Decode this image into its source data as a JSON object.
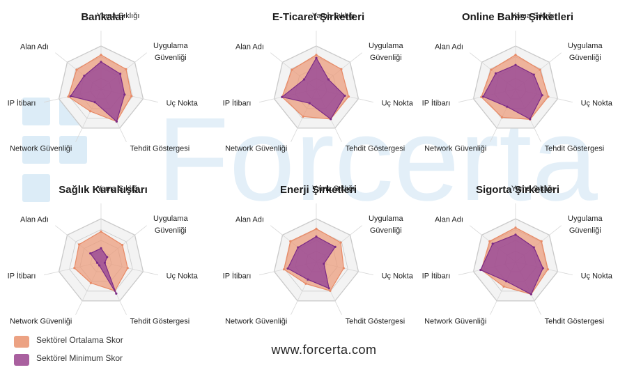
{
  "watermark": {
    "text": "Forcerta",
    "color": "#d9ebf7"
  },
  "axis_labels": [
    "Yama Sıklığı",
    "Uygulama\nGüvenliği",
    "Uç Nokta",
    "Tehdit Göstergesi",
    "Network Güvenliği",
    "IP İtibarı",
    "Alan Adı"
  ],
  "colors": {
    "average_fill": "#ec9a78",
    "average_stroke": "#e88a66",
    "minimum_fill": "#8e3a96",
    "minimum_stroke": "#7b2b86",
    "grid_fill": "#f3f3f3",
    "grid_stroke": "#c9c9c9",
    "grid_line": "#d8d8d8"
  },
  "legend": {
    "average_label": "Sektörel Ortalama Skor",
    "minimum_label": "Sektörel Minimum Skor"
  },
  "footer": {
    "website": "www.forcerta.com"
  },
  "chart_data": [
    {
      "type": "radar",
      "title": "Bankalar",
      "axes": [
        "Yama Sıklığı",
        "Uygulama Güvenliği",
        "Uç Nokta",
        "Tehdit Göstergesi",
        "Network Güvenliği",
        "IP İtibarı",
        "Alan Adı"
      ],
      "series": [
        {
          "name": "Sektörel Ortalama Skor",
          "values": [
            0.88,
            0.82,
            0.8,
            0.92,
            0.63,
            0.86,
            0.8
          ]
        },
        {
          "name": "Sektörel Minimum Skor",
          "values": [
            0.7,
            0.63,
            0.62,
            0.92,
            0.37,
            0.8,
            0.55
          ]
        }
      ]
    },
    {
      "type": "radar",
      "title": "E-Ticaret Şirketleri",
      "axes": [
        "Yama Sıklığı",
        "Uygulama Güvenliği",
        "Uç Nokta",
        "Tehdit Göstergesi",
        "Network Güvenliği",
        "IP İtibarı",
        "Alan Adı"
      ],
      "series": [
        {
          "name": "Sektörel Ortalama Skor",
          "values": [
            0.88,
            0.82,
            0.85,
            0.85,
            0.78,
            0.9,
            0.8
          ]
        },
        {
          "name": "Sektörel Minimum Skor",
          "values": [
            0.8,
            0.4,
            0.75,
            0.85,
            0.4,
            0.9,
            0.4
          ]
        }
      ]
    },
    {
      "type": "radar",
      "title": "Online Bahis Şirketleri",
      "axes": [
        "Yama Sıklığı",
        "Uygulama Güvenliği",
        "Uç Nokta",
        "Tehdit Göstergesi",
        "Network Güvenliği",
        "IP İtibarı",
        "Alan Adı"
      ],
      "series": [
        {
          "name": "Sektörel Ortalama Skor",
          "values": [
            0.88,
            0.8,
            0.86,
            0.86,
            0.8,
            0.9,
            0.8
          ]
        },
        {
          "name": "Sektörel Minimum Skor",
          "values": [
            0.62,
            0.6,
            0.7,
            0.85,
            0.5,
            0.85,
            0.65
          ]
        }
      ]
    },
    {
      "type": "radar",
      "title": "Sağlık Kuruluşları",
      "axes": [
        "Yama Sıklığı",
        "Uygulama Güvenliği",
        "Uç Nokta",
        "Tehdit Göstergesi",
        "Network Güvenliği",
        "IP İtibarı",
        "Alan Adı"
      ],
      "series": [
        {
          "name": "Sektörel Ortalama Skor",
          "values": [
            0.78,
            0.7,
            0.7,
            0.82,
            0.6,
            0.7,
            0.72
          ]
        },
        {
          "name": "Sektörel Minimum Skor",
          "values": [
            0.35,
            0.2,
            0.1,
            0.9,
            0.1,
            0.1,
            0.35
          ]
        }
      ]
    },
    {
      "type": "radar",
      "title": "Enerji Şirketleri",
      "axes": [
        "Yama Sıklığı",
        "Uygulama Güvenliği",
        "Uç Nokta",
        "Tehdit Göstergesi",
        "Network Güvenliği",
        "IP İtibarı",
        "Alan Adı"
      ],
      "series": [
        {
          "name": "Sektörel Ortalama Skor",
          "values": [
            0.85,
            0.8,
            0.72,
            0.82,
            0.62,
            0.85,
            0.85
          ]
        },
        {
          "name": "Sektörel Minimum Skor",
          "values": [
            0.65,
            0.62,
            0.2,
            0.75,
            0.5,
            0.75,
            0.6
          ]
        }
      ]
    },
    {
      "type": "radar",
      "title": "Sigorta Şirketleri",
      "axes": [
        "Yama Sıklığı",
        "Uygulama Güvenliği",
        "Uç Nokta",
        "Tehdit Göstergesi",
        "Network Güvenliği",
        "IP İtibarı",
        "Alan Adı"
      ],
      "series": [
        {
          "name": "Sektörel Ortalama Skor",
          "values": [
            0.88,
            0.85,
            0.85,
            0.92,
            0.7,
            0.9,
            0.85
          ]
        },
        {
          "name": "Sektörel Minimum Skor",
          "values": [
            0.7,
            0.6,
            0.72,
            0.92,
            0.55,
            0.92,
            0.75
          ]
        }
      ]
    }
  ]
}
